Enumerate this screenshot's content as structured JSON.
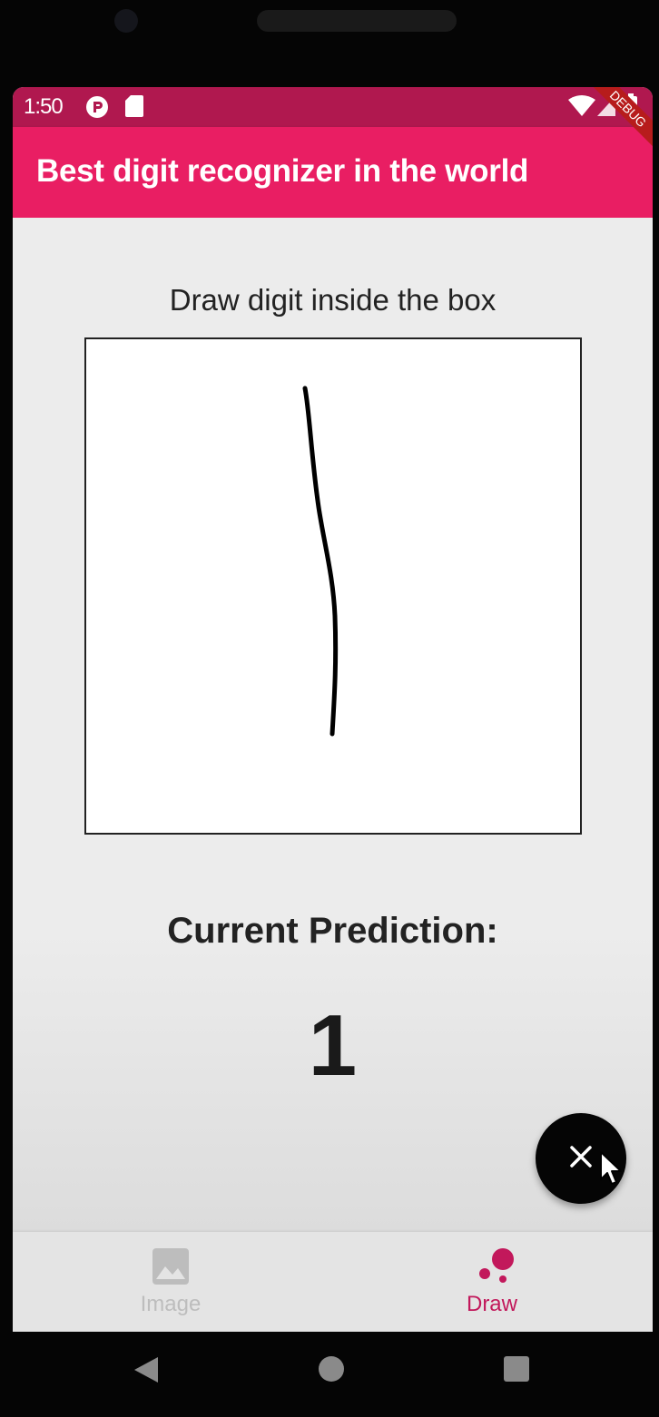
{
  "status_bar": {
    "time": "1:50",
    "debug_banner": "DEBUG"
  },
  "app_bar": {
    "title": "Best digit recognizer in the world"
  },
  "main": {
    "instruction": "Draw digit inside the box",
    "prediction_label": "Current Prediction:",
    "prediction_value": "1"
  },
  "fab": {
    "icon": "close-icon"
  },
  "bottom_nav": {
    "items": [
      {
        "label": "Image",
        "icon": "image-icon",
        "active": false
      },
      {
        "label": "Draw",
        "icon": "bubbles-icon",
        "active": true
      }
    ]
  },
  "colors": {
    "primary": "#e91e63",
    "status_bar": "#b0184f",
    "active_tab": "#c2185b",
    "inactive_tab": "#b8b8b8",
    "fab": "#050505"
  }
}
